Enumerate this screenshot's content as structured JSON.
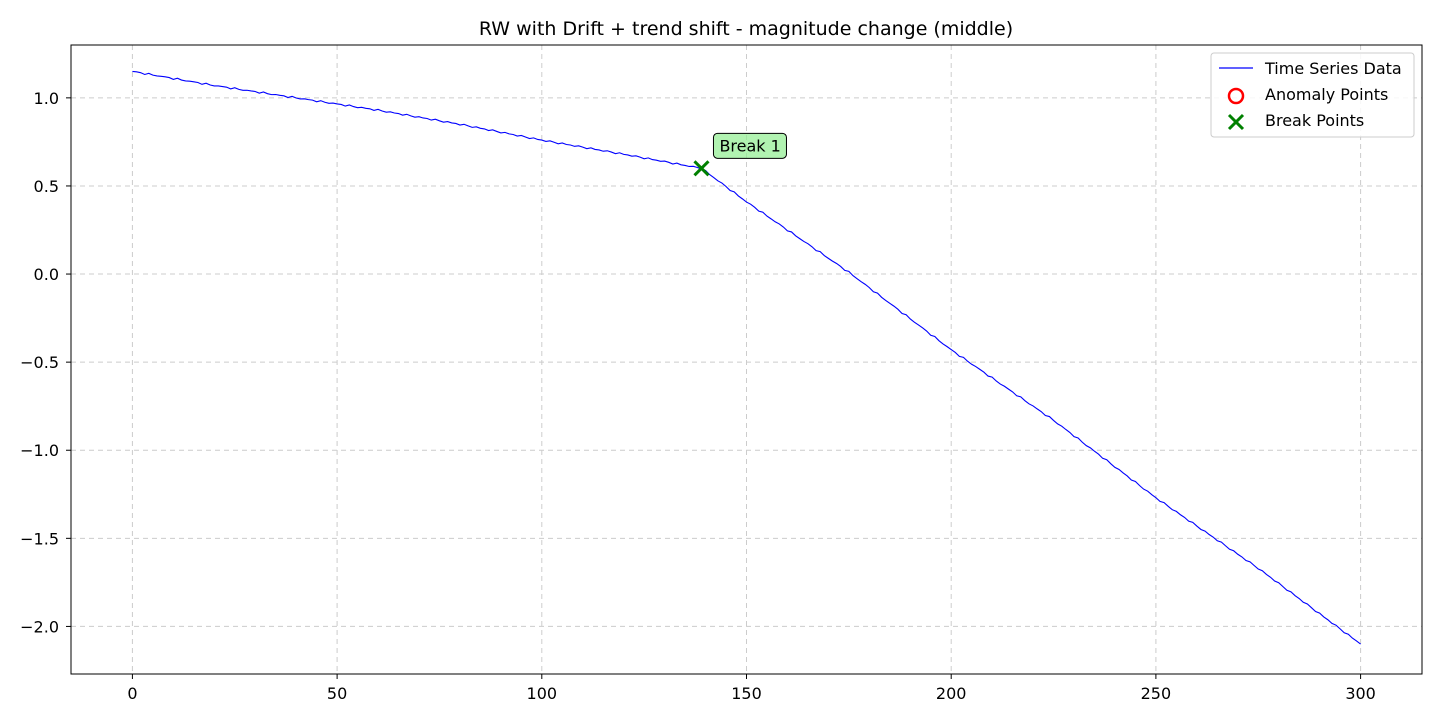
{
  "chart_data": {
    "type": "line",
    "title": "RW with Drift + trend shift - magnitude change (middle)",
    "xlabel": "",
    "ylabel": "",
    "xlim": [
      -15,
      315
    ],
    "ylim": [
      -2.27,
      1.3
    ],
    "grid": true,
    "legend_position": "top-right",
    "x_ticks": [
      0,
      50,
      100,
      150,
      200,
      250,
      300
    ],
    "y_ticks": [
      1.0,
      0.5,
      0.0,
      -0.5,
      -1.0,
      -1.5,
      -2.0
    ],
    "x_tick_labels": [
      "0",
      "50",
      "100",
      "150",
      "200",
      "250",
      "300"
    ],
    "y_tick_labels": [
      "1.0",
      "0.5",
      "0.0",
      "−0.5",
      "−1.0",
      "−1.5",
      "−2.0"
    ],
    "series": [
      {
        "name": "Time Series Data",
        "color": "#0000ff",
        "points": [
          [
            0,
            1.15
          ],
          [
            20,
            1.07
          ],
          [
            40,
            1.0
          ],
          [
            60,
            0.93
          ],
          [
            80,
            0.85
          ],
          [
            100,
            0.76
          ],
          [
            120,
            0.68
          ],
          [
            139,
            0.6
          ],
          [
            150,
            0.41
          ],
          [
            175,
            0.01
          ],
          [
            200,
            -0.43
          ],
          [
            225,
            -0.83
          ],
          [
            250,
            -1.27
          ],
          [
            275,
            -1.67
          ],
          [
            300,
            -2.1
          ]
        ],
        "noise": 0.006
      }
    ],
    "anomaly_points": {
      "name": "Anomaly Points",
      "color": "#ff0000",
      "points": []
    },
    "break_points": {
      "name": "Break Points",
      "color": "#008000",
      "points": [
        {
          "x": 139,
          "y": 0.6,
          "label": "Break 1"
        }
      ]
    }
  }
}
